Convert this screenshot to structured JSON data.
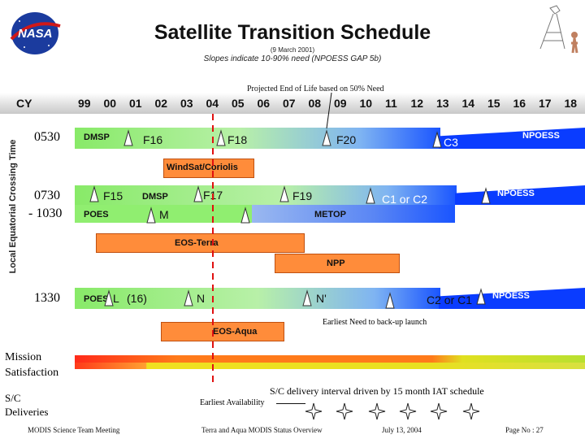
{
  "header": {
    "title": "Satellite Transition Schedule",
    "date": "(9 March 2001)",
    "subtitle": "Slopes indicate 10-90% need (NPOESS GAP 5b)",
    "projected_note": "Projected End of Life based on 50% Need",
    "logo_text": "NASA"
  },
  "axis": {
    "cy_label": "CY",
    "years": [
      "99",
      "00",
      "01",
      "02",
      "03",
      "04",
      "05",
      "06",
      "07",
      "08",
      "09",
      "10",
      "11",
      "12",
      "13",
      "14",
      "15",
      "16",
      "17",
      "18"
    ],
    "y_axis_label": "Local Equatorial Crossing Time"
  },
  "rows": {
    "r0530": "0530",
    "r0730_a": "0730",
    "r0730_b": "- 1030",
    "r1330": "1330"
  },
  "bars": {
    "dmsp_0530": "DMSP",
    "f16": "F16",
    "f18": "F18",
    "f20": "F20",
    "c3": "C3",
    "npoess_0530": "NPOESS",
    "windsat": "WindSat/Coriolis",
    "f15": "F15",
    "dmsp_0730": "DMSP",
    "f17": "F17",
    "f19": "F19",
    "c1c2": "C1 or C2",
    "npoess_0730": "NPOESS",
    "poes_0730": "POES",
    "m": "M",
    "metop": "METOP",
    "eos_terra": "EOS-Terra",
    "npp": "NPP",
    "poes_1330": "POES",
    "l": "L",
    "l16": "(16)",
    "n": "N",
    "n_prime": "N'",
    "c2c1": "C2 or C1",
    "npoess_1330": "NPOESS",
    "eos_aqua": "EOS-Aqua"
  },
  "annotations": {
    "earliest_need": "Earliest Need to back-up launch",
    "mission_a": "Mission",
    "mission_b": "Satisfaction",
    "sc_a": "S/C",
    "sc_b": "Deliveries",
    "sc_interval": "S/C delivery interval driven by 15 month IAT schedule",
    "earliest_availability": "Earliest Availability"
  },
  "footer": {
    "left": "MODIS Science Team Meeting",
    "center": "Terra and Aqua MODIS Status Overview",
    "date": "July 13, 2004",
    "page": "Page No :  27"
  },
  "colors": {
    "blue": "#0a3cff",
    "green": "#90ee70",
    "orange": "#ff8c3a",
    "red_dash": "#e01010",
    "mission_red": "#ff2a1a",
    "mission_yellow": "#f0e020"
  }
}
